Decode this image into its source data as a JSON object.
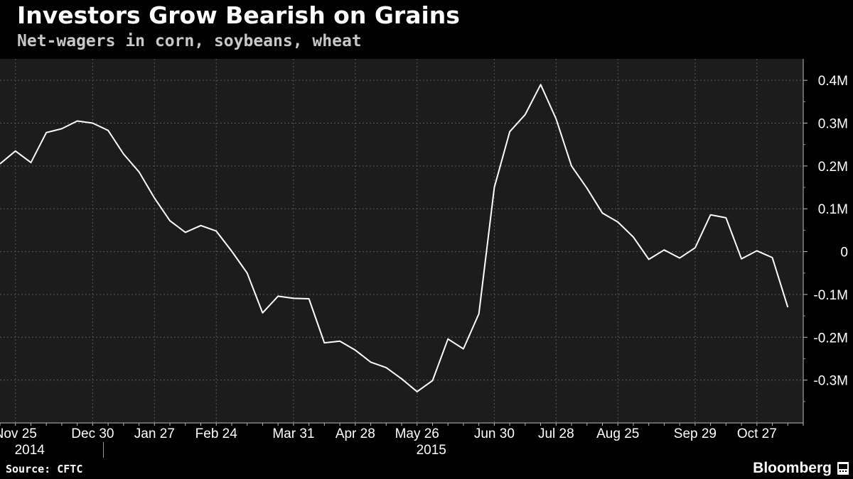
{
  "header": {
    "title": "Investors Grow Bearish on Grains",
    "subtitle": "Net-wagers in corn, soybeans, wheat"
  },
  "footer": {
    "source": "Source: CFTC",
    "brand": "Bloomberg"
  },
  "colors": {
    "background": "#000000",
    "plot_background": "#1c1c1c",
    "line": "#ffffff",
    "grid": "#5a5a5a",
    "text": "#ffffff",
    "subtitle": "#c8c8c8"
  },
  "brand_icon": "bloomberg-terminal-icon",
  "chart_data": {
    "type": "line",
    "title": "Investors Grow Bearish on Grains",
    "subtitle": "Net-wagers in corn, soybeans, wheat",
    "xlabel": "",
    "ylabel": "",
    "ylim": [
      -0.4,
      0.45
    ],
    "yticks": [
      0.4,
      0.3,
      0.2,
      0.1,
      0,
      -0.1,
      -0.2,
      -0.3
    ],
    "ytick_labels": [
      "0.4M",
      "0.3M",
      "0.2M",
      "0.1M",
      "0",
      "-0.1M",
      "-0.2M",
      "-0.3M"
    ],
    "xlim": [
      "2014-11-18",
      "2015-11-17"
    ],
    "xticks": [
      {
        "date": "2014-11-25",
        "label": "Nov 25"
      },
      {
        "date": "2014-12-30",
        "label": "Dec 30"
      },
      {
        "date": "2015-01-27",
        "label": "Jan 27"
      },
      {
        "date": "2015-02-24",
        "label": "Feb 24"
      },
      {
        "date": "2015-03-31",
        "label": "Mar 31"
      },
      {
        "date": "2015-04-28",
        "label": "Apr 28"
      },
      {
        "date": "2015-05-26",
        "label": "May 26"
      },
      {
        "date": "2015-06-30",
        "label": "Jun 30"
      },
      {
        "date": "2015-07-28",
        "label": "Jul 28"
      },
      {
        "date": "2015-08-25",
        "label": "Aug 25"
      },
      {
        "date": "2015-09-29",
        "label": "Sep 29"
      },
      {
        "date": "2015-10-27",
        "label": "Oct 27"
      }
    ],
    "year_labels": [
      {
        "date": "2014-11-25",
        "label": "2014"
      },
      {
        "date": "2015-05-26",
        "label": "2015"
      }
    ],
    "grid": true,
    "legend": "none",
    "series": [
      {
        "points": [
          {
            "x": "2014-11-18",
            "y": 0.205
          },
          {
            "x": "2014-11-25",
            "y": 0.235
          },
          {
            "x": "2014-12-02",
            "y": 0.208
          },
          {
            "x": "2014-12-09",
            "y": 0.278
          },
          {
            "x": "2014-12-16",
            "y": 0.287
          },
          {
            "x": "2014-12-23",
            "y": 0.305
          },
          {
            "x": "2014-12-30",
            "y": 0.3
          },
          {
            "x": "2015-01-06",
            "y": 0.283
          },
          {
            "x": "2015-01-13",
            "y": 0.228
          },
          {
            "x": "2015-01-20",
            "y": 0.186
          },
          {
            "x": "2015-01-27",
            "y": 0.125
          },
          {
            "x": "2015-02-03",
            "y": 0.072
          },
          {
            "x": "2015-02-10",
            "y": 0.045
          },
          {
            "x": "2015-02-17",
            "y": 0.061
          },
          {
            "x": "2015-02-24",
            "y": 0.048
          },
          {
            "x": "2015-03-03",
            "y": 0.001
          },
          {
            "x": "2015-03-10",
            "y": -0.05
          },
          {
            "x": "2015-03-17",
            "y": -0.143
          },
          {
            "x": "2015-03-24",
            "y": -0.104
          },
          {
            "x": "2015-03-31",
            "y": -0.109
          },
          {
            "x": "2015-04-07",
            "y": -0.11
          },
          {
            "x": "2015-04-14",
            "y": -0.213
          },
          {
            "x": "2015-04-21",
            "y": -0.209
          },
          {
            "x": "2015-04-28",
            "y": -0.23
          },
          {
            "x": "2015-05-05",
            "y": -0.258
          },
          {
            "x": "2015-05-12",
            "y": -0.271
          },
          {
            "x": "2015-05-19",
            "y": -0.297
          },
          {
            "x": "2015-05-26",
            "y": -0.327
          },
          {
            "x": "2015-06-02",
            "y": -0.301
          },
          {
            "x": "2015-06-09",
            "y": -0.204
          },
          {
            "x": "2015-06-16",
            "y": -0.227
          },
          {
            "x": "2015-06-23",
            "y": -0.145
          },
          {
            "x": "2015-06-30",
            "y": 0.15
          },
          {
            "x": "2015-07-07",
            "y": 0.28
          },
          {
            "x": "2015-07-14",
            "y": 0.32
          },
          {
            "x": "2015-07-21",
            "y": 0.39
          },
          {
            "x": "2015-07-28",
            "y": 0.31
          },
          {
            "x": "2015-08-04",
            "y": 0.2
          },
          {
            "x": "2015-08-11",
            "y": 0.148
          },
          {
            "x": "2015-08-18",
            "y": 0.09
          },
          {
            "x": "2015-08-25",
            "y": 0.069
          },
          {
            "x": "2015-09-01",
            "y": 0.034
          },
          {
            "x": "2015-09-08",
            "y": -0.018
          },
          {
            "x": "2015-09-15",
            "y": 0.004
          },
          {
            "x": "2015-09-22",
            "y": -0.015
          },
          {
            "x": "2015-09-29",
            "y": 0.009
          },
          {
            "x": "2015-10-06",
            "y": 0.086
          },
          {
            "x": "2015-10-13",
            "y": 0.079
          },
          {
            "x": "2015-10-20",
            "y": -0.017
          },
          {
            "x": "2015-10-27",
            "y": 0.002
          },
          {
            "x": "2015-11-03",
            "y": -0.014
          },
          {
            "x": "2015-11-10",
            "y": -0.13
          }
        ]
      }
    ]
  }
}
